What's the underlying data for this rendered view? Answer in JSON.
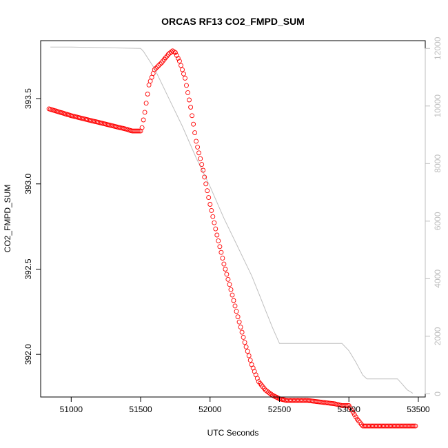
{
  "chart_data": {
    "type": "scatter",
    "title": "ORCAS RF13 CO2_FMPD_SUM",
    "xlabel": "UTC Seconds",
    "ylabel": "CO2_FMPD_SUM",
    "xlim": [
      50780,
      53550
    ],
    "ylim": [
      391.75,
      393.84
    ],
    "y2lim": [
      -110,
      12270
    ],
    "x_ticks": [
      51000,
      51500,
      52000,
      52500,
      53000,
      53500
    ],
    "y_ticks": [
      392.0,
      392.5,
      393.0,
      393.5
    ],
    "y_tick_labels": [
      "392.0",
      "392.5",
      "393.0",
      "393.5"
    ],
    "y2_ticks": [
      0,
      2000,
      4000,
      6000,
      8000,
      10000,
      12000
    ],
    "grid": false,
    "colors": {
      "points": "#ff0000",
      "secondary_line": "#bfbfbf",
      "secondary_axis": "#bdbdbd"
    },
    "series": [
      {
        "x": [
          50840,
          50880,
          50920,
          50960,
          51000,
          51050,
          51100,
          51150,
          51200,
          51250,
          51300,
          51350,
          51400,
          51440,
          51470,
          51500,
          51510,
          51530,
          51560,
          51600,
          51650,
          51700,
          51730,
          51750,
          51780,
          51820,
          51860,
          51900,
          51950,
          52000,
          52050,
          52100,
          52150,
          52200,
          52250,
          52300,
          52350,
          52400,
          52450,
          52500,
          52550,
          52600,
          52700,
          52800,
          52900,
          52950,
          53000,
          53030,
          53060,
          53080,
          53090,
          53100,
          53150,
          53200,
          53250,
          53300,
          53330,
          53350,
          53360,
          53370,
          53380,
          53400,
          53450,
          53480
        ],
        "values": [
          393.44,
          393.43,
          393.42,
          393.41,
          393.4,
          393.39,
          393.38,
          393.37,
          393.36,
          393.35,
          393.34,
          393.33,
          393.32,
          393.31,
          393.31,
          393.31,
          393.33,
          393.42,
          393.58,
          393.67,
          393.71,
          393.76,
          393.78,
          393.77,
          393.72,
          393.62,
          393.45,
          393.25,
          393.08,
          392.88,
          392.7,
          392.53,
          392.38,
          392.22,
          392.07,
          391.94,
          391.84,
          391.79,
          391.76,
          391.74,
          391.73,
          391.73,
          391.73,
          391.72,
          391.71,
          391.7,
          391.7,
          391.66,
          391.62,
          391.6,
          391.59,
          391.58,
          391.58,
          391.58,
          391.58,
          391.58,
          391.58,
          391.58,
          391.58,
          391.58,
          391.58,
          391.58,
          391.58,
          391.58
        ]
      },
      {
        "axis": "right",
        "x": [
          50850,
          51000,
          51200,
          51400,
          51500,
          51520,
          51600,
          51700,
          51800,
          51900,
          52000,
          52100,
          52200,
          52300,
          52350,
          52400,
          52450,
          52500,
          52600,
          52700,
          52800,
          52900,
          52950,
          53000,
          53050,
          53100,
          53130,
          53160,
          53200,
          53300,
          53350,
          53380,
          53420,
          53460
        ],
        "values": [
          12050,
          12050,
          12030,
          12010,
          12000,
          11900,
          11300,
          10300,
          9300,
          8200,
          7200,
          6100,
          5100,
          4100,
          3500,
          2900,
          2300,
          1750,
          1750,
          1750,
          1750,
          1750,
          1750,
          1500,
          1100,
          650,
          520,
          520,
          520,
          520,
          520,
          360,
          140,
          20
        ]
      }
    ]
  }
}
